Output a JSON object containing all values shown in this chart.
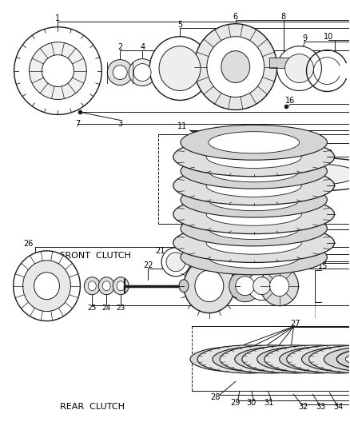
{
  "bg_color": "#ffffff",
  "line_color": "#1a1a1a",
  "front_clutch_label": "FRONT  CLUTCH",
  "rear_clutch_label": "REAR  CLUTCH",
  "figw": 4.38,
  "figh": 5.33,
  "dpi": 100
}
